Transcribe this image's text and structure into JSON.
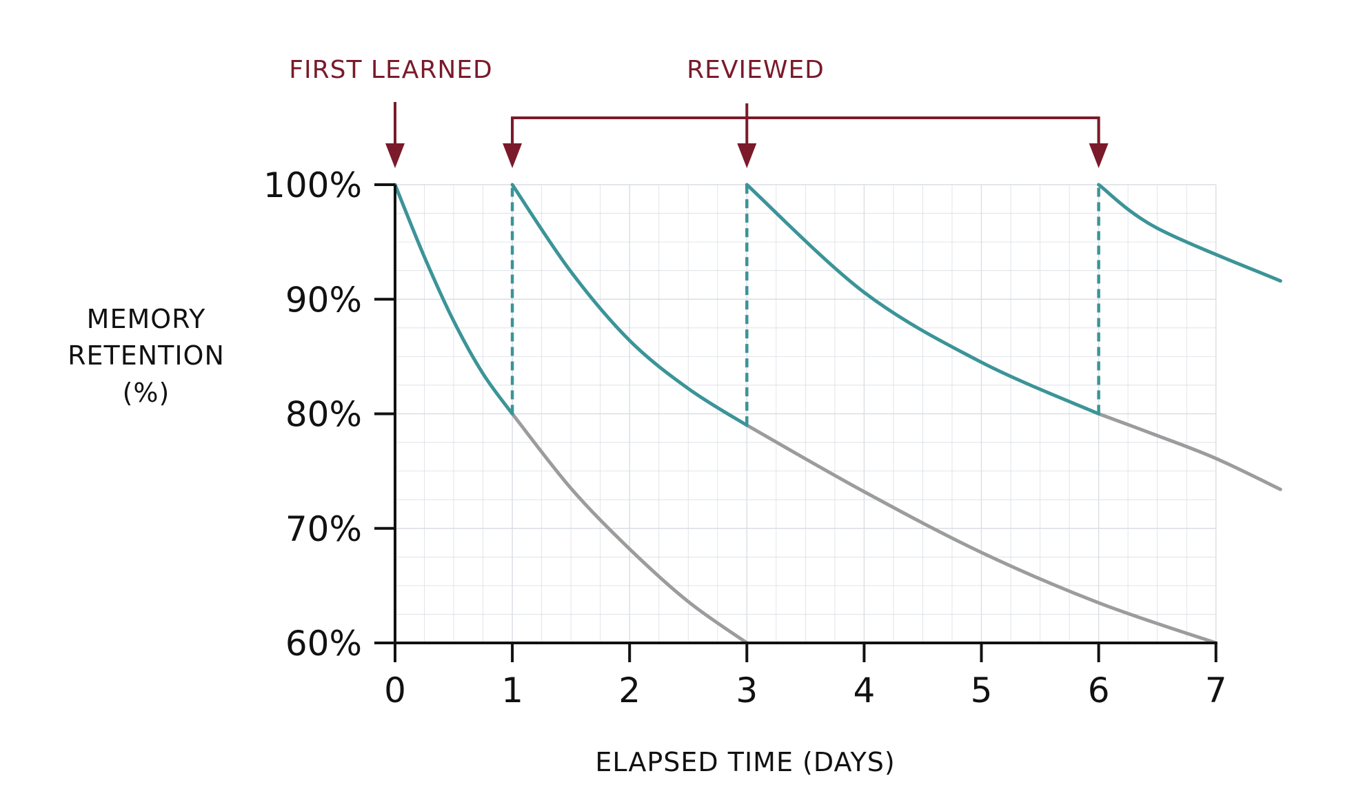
{
  "colors": {
    "background": "#ffffff",
    "axis": "#111111",
    "grid": "#d9dee3",
    "reviewed_curve": "#3b9498",
    "decay_curve": "#9c9c9c",
    "annotation": "#7a1a2a"
  },
  "chart_data": {
    "type": "line",
    "title": "",
    "xlabel": "ELAPSED TIME (DAYS)",
    "ylabel": [
      "MEMORY",
      "RETENTION",
      "(%)"
    ],
    "xlim": [
      0,
      7
    ],
    "ylim": [
      60,
      100
    ],
    "x_ticks": [
      "0",
      "1",
      "2",
      "3",
      "4",
      "5",
      "6",
      "7"
    ],
    "y_ticks": [
      "60%",
      "70%",
      "80%",
      "90%",
      "100%"
    ],
    "y_tick_values": [
      60,
      70,
      80,
      90,
      100
    ],
    "grid": true,
    "annotations": {
      "first_learned": {
        "label": "FIRST LEARNED",
        "x": 0
      },
      "reviewed": {
        "label": "REVIEWED",
        "x": [
          1,
          3,
          6
        ]
      }
    },
    "series": [
      {
        "kind": "retention-with-review",
        "x": [
          0,
          0.25,
          0.5,
          0.75,
          1
        ],
        "y": [
          100,
          93.7,
          88.1,
          83.5,
          80
        ]
      },
      {
        "kind": "retention-with-review",
        "x": [
          1,
          1.5,
          2,
          2.5,
          3
        ],
        "y": [
          100,
          92.4,
          86.4,
          82.2,
          79
        ]
      },
      {
        "kind": "retention-with-review",
        "x": [
          3,
          4,
          5,
          6
        ],
        "y": [
          100,
          90.6,
          84.5,
          80
        ]
      },
      {
        "kind": "retention-with-review",
        "x": [
          6,
          6.5,
          7.55
        ],
        "y": [
          100,
          96.2,
          91.6
        ]
      },
      {
        "kind": "forgetting",
        "x": [
          1,
          1.5,
          2,
          2.5,
          3
        ],
        "y": [
          80,
          73.5,
          68.2,
          63.6,
          60
        ]
      },
      {
        "kind": "forgetting",
        "x": [
          3,
          4,
          5,
          6,
          7
        ],
        "y": [
          79,
          73.2,
          67.9,
          63.5,
          60
        ]
      },
      {
        "kind": "forgetting",
        "x": [
          6,
          6.5,
          7,
          7.55
        ],
        "y": [
          80,
          78.1,
          76.1,
          73.4
        ]
      }
    ],
    "review_jumps": [
      {
        "x": 1,
        "from": 80,
        "to": 100
      },
      {
        "x": 3,
        "from": 79,
        "to": 100
      },
      {
        "x": 6,
        "from": 80,
        "to": 100
      }
    ]
  }
}
